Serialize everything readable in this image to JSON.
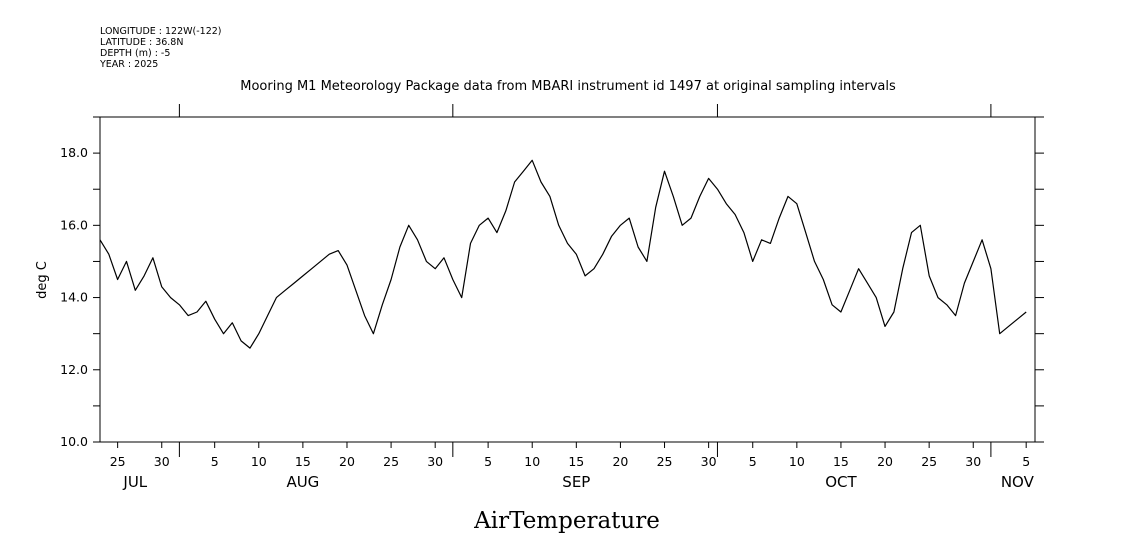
{
  "meta": {
    "longitude": "LONGITUDE : 122W(-122)",
    "latitude": "LATITUDE : 36.8N",
    "depth": "DEPTH (m) : -5",
    "year": "YEAR : 2025"
  },
  "chart_data": {
    "type": "line",
    "title": "Mooring M1 Meteorology Package data from MBARI instrument id 1497 at original sampling intervals",
    "xlabel": "AirTemperature",
    "ylabel": "deg C",
    "ylim": [
      10.0,
      19.0
    ],
    "xlim": [
      "2025-07-23",
      "2025-11-06"
    ],
    "yticks": [
      "10.0",
      "12.0",
      "14.0",
      "16.0",
      "18.0"
    ],
    "xtick_days": [
      {
        "date": "2025-07-25",
        "label": "25"
      },
      {
        "date": "2025-07-30",
        "label": "30"
      },
      {
        "date": "2025-08-05",
        "label": "5"
      },
      {
        "date": "2025-08-10",
        "label": "10"
      },
      {
        "date": "2025-08-15",
        "label": "15"
      },
      {
        "date": "2025-08-20",
        "label": "20"
      },
      {
        "date": "2025-08-25",
        "label": "25"
      },
      {
        "date": "2025-08-30",
        "label": "30"
      },
      {
        "date": "2025-09-05",
        "label": "5"
      },
      {
        "date": "2025-09-10",
        "label": "10"
      },
      {
        "date": "2025-09-15",
        "label": "15"
      },
      {
        "date": "2025-09-20",
        "label": "20"
      },
      {
        "date": "2025-09-25",
        "label": "25"
      },
      {
        "date": "2025-09-30",
        "label": "30"
      },
      {
        "date": "2025-10-05",
        "label": "5"
      },
      {
        "date": "2025-10-10",
        "label": "10"
      },
      {
        "date": "2025-10-15",
        "label": "15"
      },
      {
        "date": "2025-10-20",
        "label": "20"
      },
      {
        "date": "2025-10-25",
        "label": "25"
      },
      {
        "date": "2025-10-30",
        "label": "30"
      },
      {
        "date": "2025-11-05",
        "label": "5"
      }
    ],
    "month_labels": [
      {
        "date": "2025-07-27",
        "label": "JUL"
      },
      {
        "date": "2025-08-15",
        "label": "AUG"
      },
      {
        "date": "2025-09-15",
        "label": "SEP"
      },
      {
        "date": "2025-10-15",
        "label": "OCT"
      },
      {
        "date": "2025-11-04",
        "label": "NOV"
      }
    ],
    "month_boundaries": [
      "2025-08-01",
      "2025-09-01",
      "2025-10-01",
      "2025-11-01"
    ],
    "grid": false,
    "series": [
      {
        "x": [
          "2025-07-23",
          "2025-07-24",
          "2025-07-25",
          "2025-07-26",
          "2025-07-27",
          "2025-07-28",
          "2025-07-29",
          "2025-07-30",
          "2025-07-31",
          "2025-08-01",
          "2025-08-02",
          "2025-08-03",
          "2025-08-04",
          "2025-08-05",
          "2025-08-06",
          "2025-08-07",
          "2025-08-08",
          "2025-08-09",
          "2025-08-10",
          "2025-08-11",
          "2025-08-12",
          "2025-08-13",
          "2025-08-14",
          "2025-08-15",
          "2025-08-16",
          "2025-08-17",
          "2025-08-18",
          "2025-08-19",
          "2025-08-20",
          "2025-08-21",
          "2025-08-22",
          "2025-08-23",
          "2025-08-24",
          "2025-08-25",
          "2025-08-26",
          "2025-08-27",
          "2025-08-28",
          "2025-08-29",
          "2025-08-30",
          "2025-08-31",
          "2025-09-01",
          "2025-09-02",
          "2025-09-03",
          "2025-09-04",
          "2025-09-05",
          "2025-09-06",
          "2025-09-07",
          "2025-09-08",
          "2025-09-09",
          "2025-09-10",
          "2025-09-11",
          "2025-09-12",
          "2025-09-13",
          "2025-09-14",
          "2025-09-15",
          "2025-09-16",
          "2025-09-17",
          "2025-09-18",
          "2025-09-19",
          "2025-09-20",
          "2025-09-21",
          "2025-09-22",
          "2025-09-23",
          "2025-09-24",
          "2025-09-25",
          "2025-09-26",
          "2025-09-27",
          "2025-09-28",
          "2025-09-29",
          "2025-09-30",
          "2025-10-01",
          "2025-10-02",
          "2025-10-03",
          "2025-10-04",
          "2025-10-05",
          "2025-10-06",
          "2025-10-07",
          "2025-10-08",
          "2025-10-09",
          "2025-10-10",
          "2025-10-11",
          "2025-10-12",
          "2025-10-13",
          "2025-10-14",
          "2025-10-15",
          "2025-10-16",
          "2025-10-17",
          "2025-10-18",
          "2025-10-19",
          "2025-10-20",
          "2025-10-21",
          "2025-10-22",
          "2025-10-23",
          "2025-10-24",
          "2025-10-25",
          "2025-10-26",
          "2025-10-27",
          "2025-10-28",
          "2025-10-29",
          "2025-10-30",
          "2025-10-31",
          "2025-11-01",
          "2025-11-02",
          "2025-11-03",
          "2025-11-04",
          "2025-11-05"
        ],
        "y": [
          15.6,
          15.2,
          14.5,
          15.0,
          14.2,
          14.6,
          15.1,
          14.3,
          14.0,
          13.8,
          13.5,
          13.6,
          13.9,
          13.4,
          13.0,
          13.3,
          12.8,
          12.6,
          13.0,
          13.5,
          14.0,
          14.2,
          14.4,
          14.6,
          14.8,
          15.0,
          15.2,
          15.3,
          14.9,
          14.2,
          13.5,
          13.0,
          13.8,
          14.5,
          15.4,
          16.0,
          15.6,
          15.0,
          14.8,
          15.1,
          14.5,
          14.0,
          15.5,
          16.0,
          16.2,
          15.8,
          16.4,
          17.2,
          17.5,
          17.8,
          17.2,
          16.8,
          16.0,
          15.5,
          15.2,
          14.6,
          14.8,
          15.2,
          15.7,
          16.0,
          16.2,
          15.4,
          15.0,
          16.5,
          17.5,
          16.8,
          16.0,
          16.2,
          16.8,
          17.3,
          17.0,
          16.6,
          16.3,
          15.8,
          15.0,
          15.6,
          15.5,
          16.2,
          16.8,
          16.6,
          15.8,
          15.0,
          14.5,
          13.8,
          13.6,
          14.2,
          14.8,
          14.4,
          14.0,
          13.2,
          13.6,
          14.8,
          15.8,
          16.0,
          14.6,
          14.0,
          13.8,
          13.5,
          14.4,
          15.0,
          15.6,
          14.8,
          13.0,
          13.2,
          13.4,
          13.6
        ]
      }
    ]
  }
}
